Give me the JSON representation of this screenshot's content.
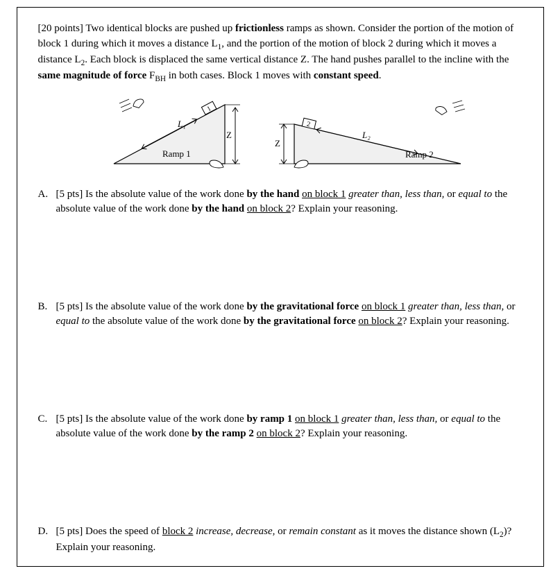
{
  "header": {
    "points_label": "[20 points]",
    "intro_html": "Two identical blocks are pushed up <b>frictionless</b> ramps as shown. Consider the portion of the motion of block 1 during which it moves a distance L<sub>1</sub>, and the portion of the motion of block 2 during which it moves a distance L<sub>2</sub>. Each block is displaced the same vertical distance Z. The hand pushes parallel to the incline with the <b>same magnitude of force</b> F<sub>BH</sub> in both cases.  Block 1 moves with <b>constant speed</b>."
  },
  "figure": {
    "ramp1_label": "Ramp 1",
    "ramp2_label": "Ramp 2",
    "height_label": "Z",
    "dist1_label": "L₁",
    "dist2_label": "L₂",
    "block1_label": "1",
    "block2_label": "2",
    "ramp1": {
      "angle_deg": 38,
      "fill": "#f0f0f0",
      "stroke": "#000"
    },
    "ramp2": {
      "angle_deg": 18,
      "fill": "#f0f0f0",
      "stroke": "#000"
    },
    "label_font_size": 13,
    "label_font_family": "Times New Roman"
  },
  "questions": {
    "a": {
      "letter": "A.",
      "points": "[5 pts]",
      "html": "Is the absolute value of the work done <b>by the hand</b> <u>on block 1</u> <i>greater than, less than,</i> or <i>equal to</i> the absolute value of the work done <b>by the hand</b> <u>on block 2</u>?  Explain your reasoning."
    },
    "b": {
      "letter": "B.",
      "points": "[5 pts]",
      "html": "Is the absolute value of the work done <b>by the gravitational force</b> <u>on block 1</u> <i>greater than, less than,</i> or <i>equal to</i> the absolute value of the work done <b>by the gravitational force</b> <u>on block 2</u>?  Explain your reasoning."
    },
    "c": {
      "letter": "C.",
      "points": "[5 pts]",
      "html": "Is the absolute value of the work done <b>by ramp 1</b> <u>on block 1</u> <i>greater than, less than,</i> or <i>equal to</i> the absolute value of the work done <b>by the ramp 2</b> <u>on block 2</u>?  Explain your reasoning."
    },
    "d": {
      "letter": "D.",
      "points": "[5 pts]",
      "html": "Does the speed of <u>block 2</u> <i>increase, decrease,</i> or <i>remain constant</i> as it moves the distance shown (L<sub>2</sub>)?  Explain your reasoning."
    }
  }
}
